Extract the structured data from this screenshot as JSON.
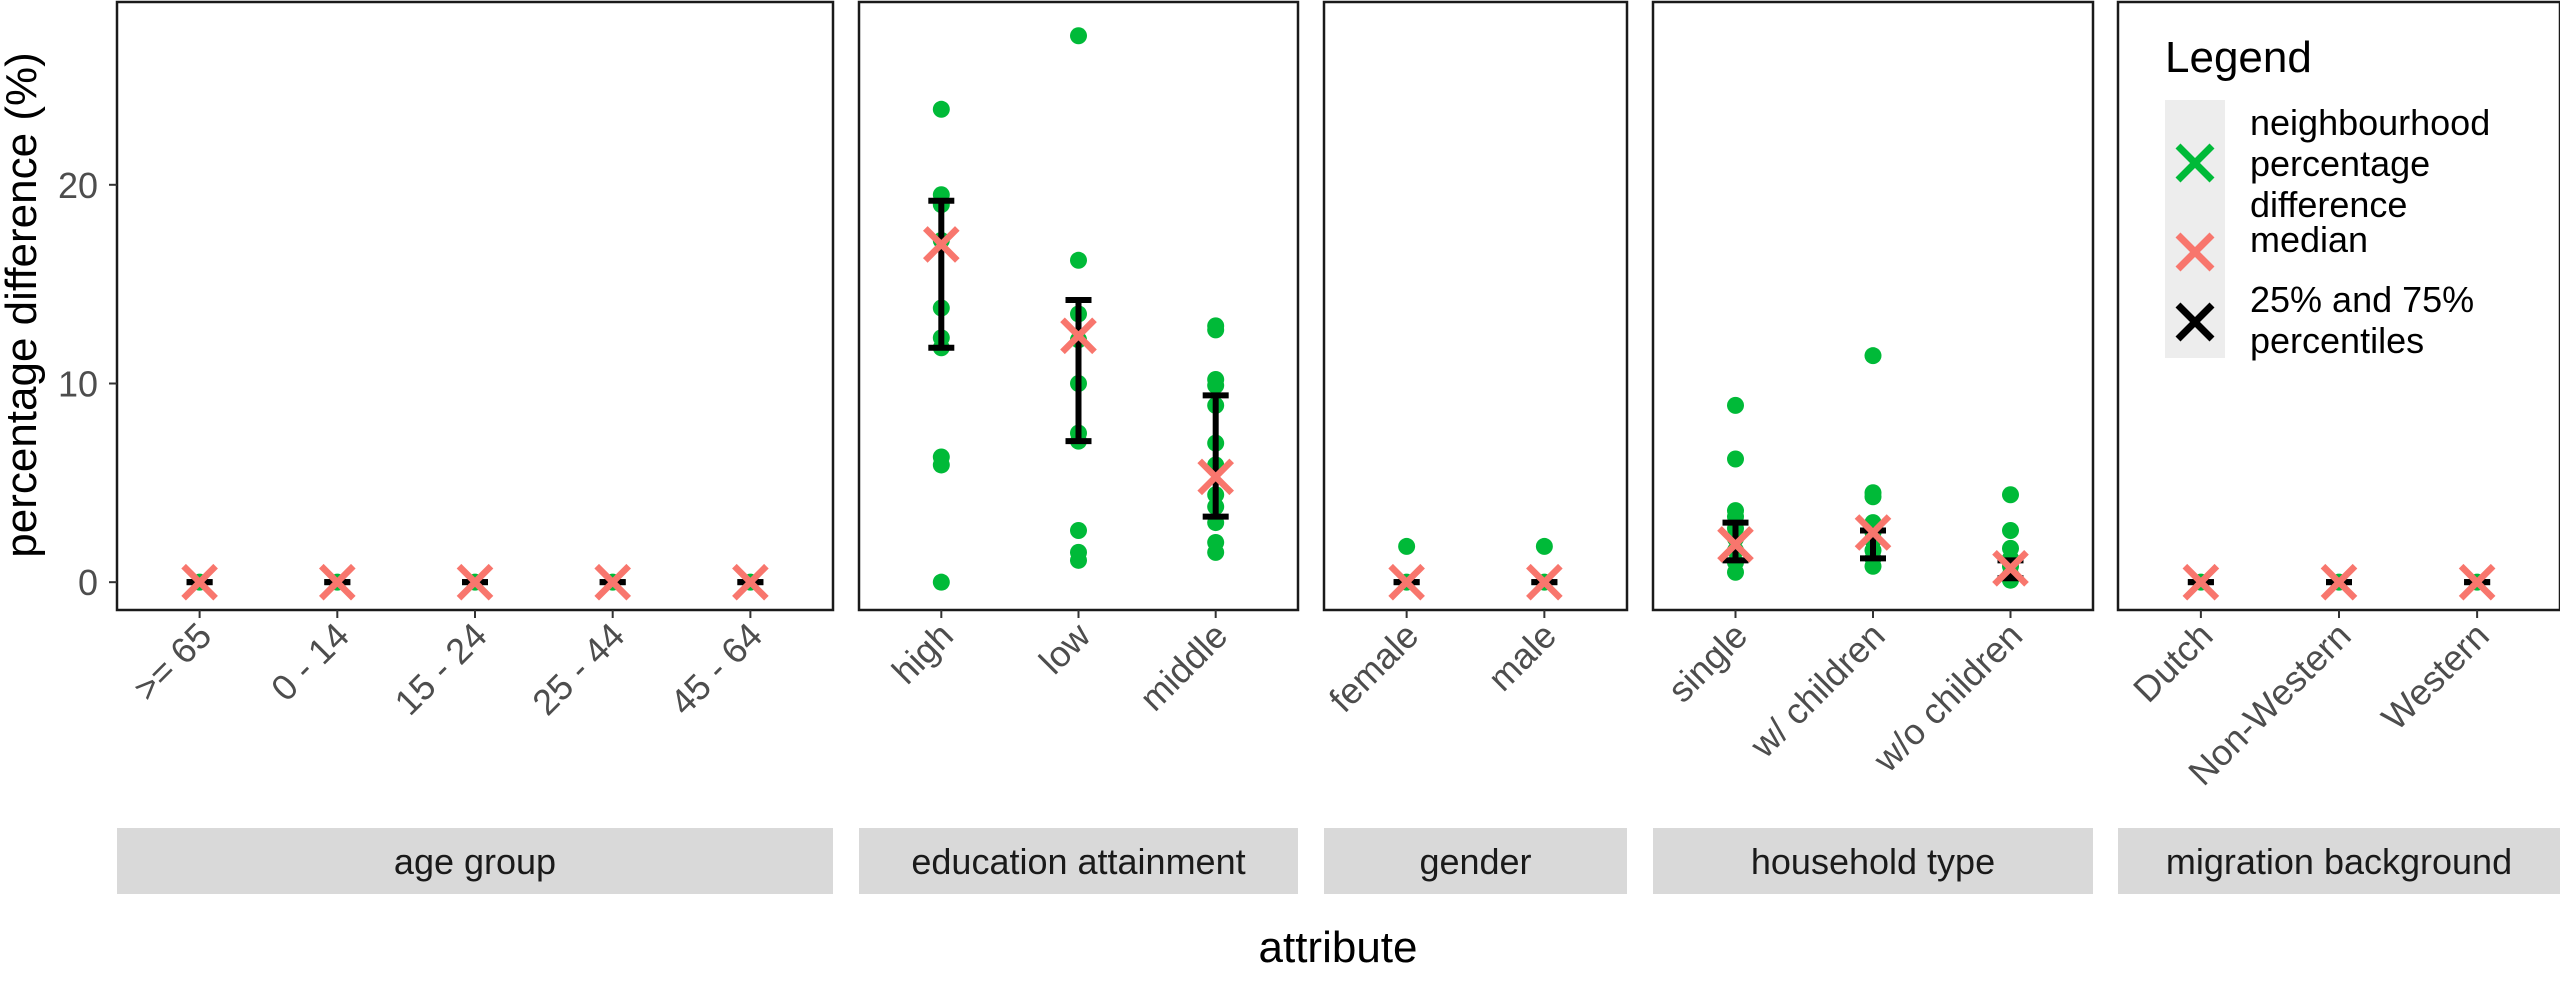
{
  "chart_data": {
    "type": "scatter",
    "ylabel": "percentage difference (%)",
    "xlabel": "attribute",
    "ylim": [
      -1.4,
      29.2
    ],
    "yticks": [
      0,
      10,
      20
    ],
    "grid": true,
    "colors": {
      "points": "#00ba38",
      "median": "#f8766d",
      "percentiles": "#000000"
    },
    "legend": {
      "title": "Legend",
      "position": "top-right",
      "entries": [
        {
          "label_lines": [
            "neighbourhood",
            "percentage",
            "difference"
          ],
          "color": "#00ba38",
          "symbol": "cross-icon"
        },
        {
          "label_lines": [
            "median"
          ],
          "color": "#f8766d",
          "symbol": "cross-icon"
        },
        {
          "label_lines": [
            "25% and 75%",
            "percentiles"
          ],
          "color": "#000000",
          "symbol": "cross-icon"
        }
      ]
    },
    "facets": [
      {
        "strip": "age group",
        "categories": [
          {
            "label": ">= 65",
            "points": [
              0
            ],
            "median": 0,
            "p25": 0,
            "p75": 0
          },
          {
            "label": "0 - 14",
            "points": [
              0
            ],
            "median": 0,
            "p25": 0,
            "p75": 0
          },
          {
            "label": "15 - 24",
            "points": [
              0
            ],
            "median": 0,
            "p25": 0,
            "p75": 0
          },
          {
            "label": "25 - 44",
            "points": [
              0
            ],
            "median": 0,
            "p25": 0,
            "p75": 0
          },
          {
            "label": "45 - 64",
            "points": [
              0
            ],
            "median": 0,
            "p25": 0,
            "p75": 0
          }
        ]
      },
      {
        "strip": "education attainment",
        "categories": [
          {
            "label": "high",
            "points": [
              23.8,
              19.5,
              19.0,
              17.2,
              13.8,
              12.3,
              11.8,
              6.3,
              5.9,
              0.0
            ],
            "median": 17.0,
            "p25": 11.8,
            "p75": 19.2
          },
          {
            "label": "low",
            "points": [
              27.5,
              16.2,
              13.5,
              12.2,
              10.0,
              7.5,
              7.1,
              2.6,
              1.5,
              1.1
            ],
            "median": 12.4,
            "p25": 7.1,
            "p75": 14.2
          },
          {
            "label": "middle",
            "points": [
              12.9,
              12.7,
              10.2,
              9.9,
              8.9,
              7.0,
              5.9,
              4.4,
              3.8,
              3.0,
              2.0,
              1.5
            ],
            "median": 5.3,
            "p25": 3.3,
            "p75": 9.4
          }
        ]
      },
      {
        "strip": "gender",
        "categories": [
          {
            "label": "female",
            "points": [
              1.8,
              0.0
            ],
            "median": 0,
            "p25": 0,
            "p75": 0
          },
          {
            "label": "male",
            "points": [
              1.8,
              0.0
            ],
            "median": 0,
            "p25": 0,
            "p75": 0
          }
        ]
      },
      {
        "strip": "household type",
        "categories": [
          {
            "label": "single",
            "points": [
              8.9,
              6.2,
              3.6,
              3.3,
              2.7,
              2.2,
              1.6,
              1.0,
              0.5
            ],
            "median": 1.9,
            "p25": 1.1,
            "p75": 3.0
          },
          {
            "label": "w/ children",
            "points": [
              11.4,
              4.5,
              4.3,
              3.0,
              2.5,
              2.1,
              1.6,
              1.2,
              0.8
            ],
            "median": 2.5,
            "p25": 1.2,
            "p75": 2.6
          },
          {
            "label": "w/o children",
            "points": [
              4.4,
              2.6,
              1.7,
              1.2,
              0.8,
              0.4,
              0.1
            ],
            "median": 0.7,
            "p25": 0.2,
            "p75": 1.1
          }
        ]
      },
      {
        "strip": "migration background",
        "categories": [
          {
            "label": "Dutch",
            "points": [
              0
            ],
            "median": 0,
            "p25": 0,
            "p75": 0
          },
          {
            "label": "Non-Western",
            "points": [
              0
            ],
            "median": 0,
            "p25": 0,
            "p75": 0
          },
          {
            "label": "Western",
            "points": [
              0
            ],
            "median": 0,
            "p25": 0,
            "p75": 0
          }
        ]
      }
    ]
  }
}
